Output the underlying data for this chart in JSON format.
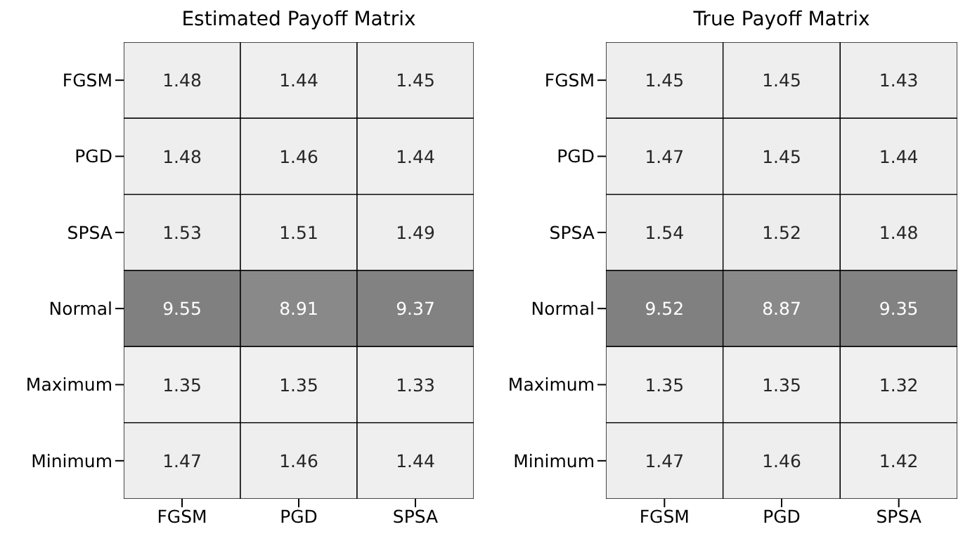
{
  "chart_data": [
    {
      "type": "heatmap",
      "title": "Estimated Payoff Matrix",
      "categories": [
        "FGSM",
        "PGD",
        "SPSA"
      ],
      "y_categories": [
        "FGSM",
        "PGD",
        "SPSA",
        "Normal",
        "Maximum",
        "Minimum"
      ],
      "data_labels": true,
      "cells": [
        [
          1.48,
          1.44,
          1.45
        ],
        [
          1.48,
          1.46,
          1.44
        ],
        [
          1.53,
          1.51,
          1.49
        ],
        [
          9.55,
          8.91,
          9.37
        ],
        [
          1.35,
          1.35,
          1.33
        ],
        [
          1.47,
          1.46,
          1.44
        ]
      ]
    },
    {
      "type": "heatmap",
      "title": "True Payoff Matrix",
      "categories": [
        "FGSM",
        "PGD",
        "SPSA"
      ],
      "y_categories": [
        "FGSM",
        "PGD",
        "SPSA",
        "Normal",
        "Maximum",
        "Minimum"
      ],
      "data_labels": true,
      "cells": [
        [
          1.45,
          1.45,
          1.43
        ],
        [
          1.47,
          1.45,
          1.44
        ],
        [
          1.54,
          1.52,
          1.48
        ],
        [
          9.52,
          8.87,
          9.35
        ],
        [
          1.35,
          1.35,
          1.32
        ],
        [
          1.47,
          1.46,
          1.42
        ]
      ]
    }
  ]
}
